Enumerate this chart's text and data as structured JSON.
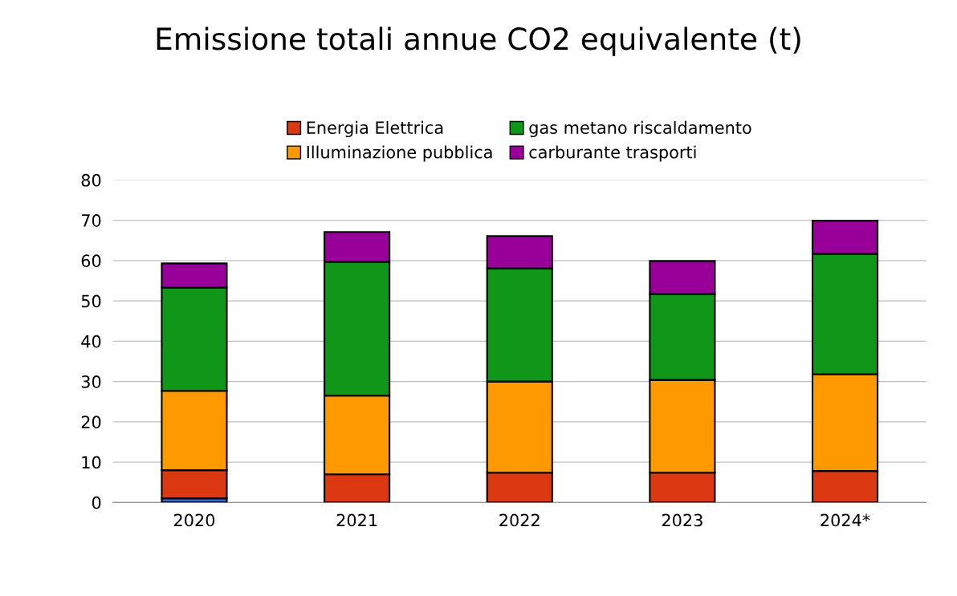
{
  "chart_data": {
    "type": "bar",
    "title": "Emissione totali annue CO2 equivalente (t)",
    "categories": [
      "2020",
      "2021",
      "2022",
      "2023",
      "2024*"
    ],
    "stacked": true,
    "series": [
      {
        "color": "#3366cc",
        "values": [
          1.0,
          null,
          null,
          null,
          null
        ]
      },
      {
        "name": "Energia Elettrica",
        "color": "#dc3912",
        "values": [
          7.0,
          7.0,
          7.4,
          7.4,
          7.8
        ]
      },
      {
        "name": "Illuminazione pubblica",
        "color": "#ff9900",
        "values": [
          19.7,
          19.5,
          22.6,
          23.0,
          24.0
        ]
      },
      {
        "name": "gas metano riscaldamento",
        "color": "#109618",
        "values": [
          25.6,
          33.2,
          28.1,
          21.3,
          29.9
        ]
      },
      {
        "name": "carburante trasporti",
        "color": "#990099",
        "values": [
          6.0,
          7.4,
          8.0,
          8.2,
          8.2
        ]
      }
    ],
    "ylim": [
      0,
      80
    ],
    "yticks": [
      0,
      10,
      20,
      30,
      40,
      50,
      60,
      70,
      80
    ],
    "grid": "y",
    "legend": "top"
  }
}
